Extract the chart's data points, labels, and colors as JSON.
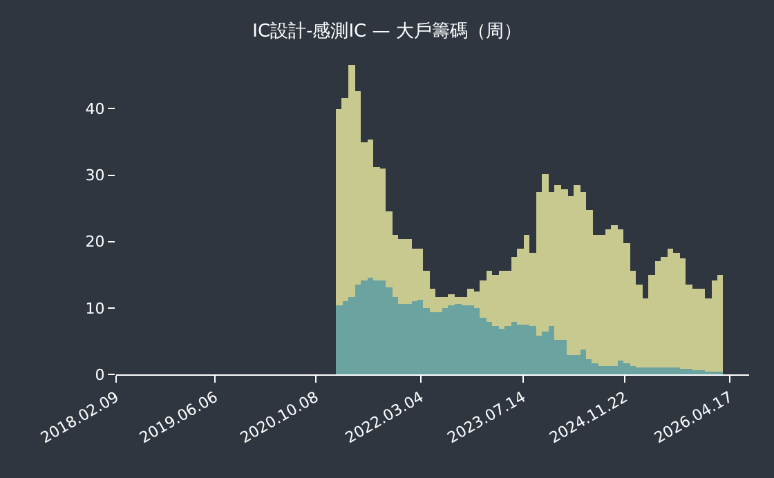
{
  "chart_data": {
    "type": "bar",
    "stacked": true,
    "title": "IC設計-感測IC — 大戶籌碼（周）",
    "x": [
      "2021-02",
      "2021-03",
      "2021-04",
      "2021-05",
      "2021-06",
      "2021-07",
      "2021-08",
      "2021-09",
      "2021-10",
      "2021-11",
      "2021-12",
      "2022-01",
      "2022-02",
      "2022-03",
      "2022-04",
      "2022-05",
      "2022-06",
      "2022-07",
      "2022-08",
      "2022-09",
      "2022-10",
      "2022-11",
      "2022-12",
      "2023-01",
      "2023-02",
      "2023-03",
      "2023-04",
      "2023-05",
      "2023-06",
      "2023-07",
      "2023-08",
      "2023-09",
      "2023-10",
      "2023-11",
      "2023-12",
      "2024-01",
      "2024-02",
      "2024-03",
      "2024-04",
      "2024-05",
      "2024-06",
      "2024-07",
      "2024-08",
      "2024-09",
      "2024-10",
      "2024-11",
      "2024-12",
      "2025-01",
      "2025-02",
      "2025-03",
      "2025-04",
      "2025-05",
      "2025-06",
      "2025-07",
      "2025-08",
      "2025-09",
      "2025-10",
      "2025-11",
      "2025-12",
      "2026-01",
      "2026-02",
      "2026-03"
    ],
    "series": [
      {
        "color": "#6aa3a0",
        "values": [
          10.5,
          11,
          11.7,
          13.5,
          14.2,
          14.5,
          14.2,
          14.2,
          13.2,
          11.7,
          10.7,
          10.7,
          11,
          11.3,
          10,
          9.3,
          9.3,
          10,
          10.5,
          10.7,
          10.5,
          10.5,
          10,
          8.6,
          7.9,
          7.2,
          6.8,
          7.2,
          7.9,
          7.5,
          7.5,
          7.3,
          5.9,
          6.5,
          7.3,
          5.1,
          5.1,
          3,
          3,
          3.7,
          2.3,
          1.6,
          1.3,
          1.3,
          1.3,
          2,
          1.6,
          1.3,
          1,
          1,
          1,
          1,
          1.1,
          1.1,
          1,
          0.9,
          0.9,
          0.7,
          0.7,
          0.5,
          0.5,
          0.5
        ]
      },
      {
        "color": "#c8c98e",
        "values": [
          29.5,
          30.7,
          34.9,
          29.2,
          20.8,
          20.9,
          17,
          16.7,
          11.4,
          9.3,
          9.7,
          9.7,
          8,
          7.7,
          5.5,
          3.5,
          2.4,
          1.7,
          1.5,
          1,
          1.2,
          2.3,
          2.4,
          5.6,
          7.6,
          7.7,
          8.7,
          8.3,
          9.7,
          11.5,
          13.5,
          11.1,
          21.5,
          23.7,
          20.1,
          23.4,
          22.7,
          23.8,
          25.5,
          23.7,
          22.4,
          19.4,
          19.7,
          20.5,
          21.2,
          19.8,
          18.1,
          14.2,
          12.5,
          10.4,
          13.9,
          16,
          16.5,
          17.9,
          17.4,
          16.5,
          12.6,
          12.1,
          12.1,
          10.9,
          13.7,
          14.5
        ]
      }
    ],
    "xlim": [
      "2018-02-09",
      "2026-07-20"
    ],
    "xticks": [
      {
        "value": "2018-02-09",
        "label": "2018.02.09"
      },
      {
        "value": "2019-06-06",
        "label": "2019.06.06"
      },
      {
        "value": "2020-10-08",
        "label": "2020.10.08"
      },
      {
        "value": "2022-03-04",
        "label": "2022.03.04"
      },
      {
        "value": "2023-07-14",
        "label": "2023.07.14"
      },
      {
        "value": "2024-11-22",
        "label": "2024.11.22"
      },
      {
        "value": "2026-04-17",
        "label": "2026.04.17"
      }
    ],
    "ylim": [
      0,
      46.6
    ],
    "yticks": [
      0,
      10,
      20,
      30,
      40
    ],
    "grid": false
  }
}
